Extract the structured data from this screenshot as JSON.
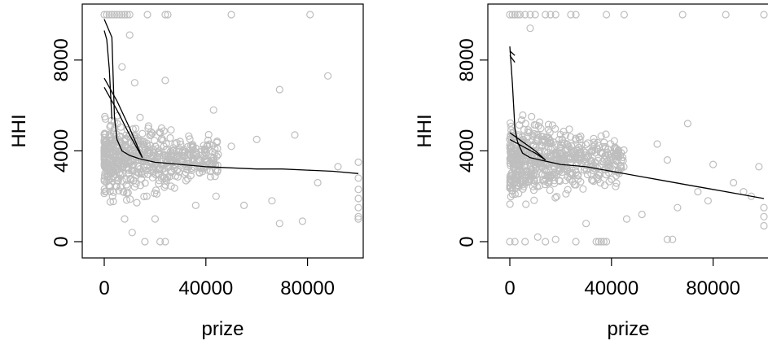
{
  "chart_data": [
    {
      "type": "scatter",
      "title": "",
      "xlabel": "prize",
      "ylabel": "HHI",
      "xlim": [
        0,
        100000
      ],
      "ylim": [
        0,
        10000
      ],
      "xticks": [
        0,
        40000,
        80000
      ],
      "xtick_labels": [
        "0",
        "40000",
        "80000"
      ],
      "yticks": [
        0,
        4000,
        8000
      ],
      "ytick_labels": [
        "0",
        "4000",
        "8000"
      ],
      "grid": false,
      "point_color": "#bebebe",
      "line_color": "#000000",
      "cap_points": [
        {
          "x": 0,
          "y": 10000
        },
        {
          "x": 1000,
          "y": 10000
        },
        {
          "x": 2000,
          "y": 10000
        },
        {
          "x": 3000,
          "y": 10000
        },
        {
          "x": 4000,
          "y": 10000
        },
        {
          "x": 5000,
          "y": 10000
        },
        {
          "x": 6000,
          "y": 10000
        },
        {
          "x": 7000,
          "y": 10000
        },
        {
          "x": 8000,
          "y": 10000
        },
        {
          "x": 9000,
          "y": 10000
        },
        {
          "x": 10000,
          "y": 10000
        },
        {
          "x": 17000,
          "y": 10000
        },
        {
          "x": 24000,
          "y": 10000
        },
        {
          "x": 25000,
          "y": 10000
        },
        {
          "x": 50000,
          "y": 10000
        },
        {
          "x": 81000,
          "y": 10000
        }
      ],
      "outlier_points": [
        {
          "x": 10000,
          "y": 9100
        },
        {
          "x": 7000,
          "y": 7700
        },
        {
          "x": 12000,
          "y": 7000
        },
        {
          "x": 24000,
          "y": 7100
        },
        {
          "x": 69000,
          "y": 6700
        },
        {
          "x": 88000,
          "y": 7300
        },
        {
          "x": 43000,
          "y": 5800
        },
        {
          "x": 50000,
          "y": 4200
        },
        {
          "x": 60000,
          "y": 4500
        },
        {
          "x": 75000,
          "y": 4700
        },
        {
          "x": 92000,
          "y": 3300
        },
        {
          "x": 100000,
          "y": 3500
        },
        {
          "x": 100000,
          "y": 2300
        },
        {
          "x": 100000,
          "y": 1900
        },
        {
          "x": 100000,
          "y": 1100
        },
        {
          "x": 100000,
          "y": 1000
        },
        {
          "x": 100000,
          "y": 1500
        },
        {
          "x": 100000,
          "y": 2800
        },
        {
          "x": 55000,
          "y": 1600
        },
        {
          "x": 69000,
          "y": 800
        },
        {
          "x": 78000,
          "y": 900
        },
        {
          "x": 8000,
          "y": 1000
        },
        {
          "x": 11000,
          "y": 400
        },
        {
          "x": 16000,
          "y": 0
        },
        {
          "x": 22000,
          "y": 0
        },
        {
          "x": 24000,
          "y": 0
        },
        {
          "x": 20000,
          "y": 1000
        },
        {
          "x": 36000,
          "y": 1600
        },
        {
          "x": 44000,
          "y": 2000
        },
        {
          "x": 66000,
          "y": 1800
        },
        {
          "x": 84000,
          "y": 2600
        }
      ],
      "cluster": {
        "count": 600,
        "x_range": [
          0,
          45000
        ],
        "y_center": 3700,
        "seed": 7
      },
      "fit_lines": [
        {
          "x": [
            0,
            3000,
            4000,
            5000,
            7000,
            10000,
            14000,
            20000,
            30000,
            40000,
            50000,
            60000,
            70000,
            80000,
            90000,
            100000
          ],
          "y": [
            9800,
            9000,
            5500,
            4500,
            4000,
            3800,
            3650,
            3500,
            3400,
            3300,
            3250,
            3200,
            3200,
            3150,
            3100,
            3000
          ]
        },
        {
          "x": [
            0,
            1000,
            2000,
            3000
          ],
          "y": [
            9300,
            8900,
            7600,
            5400
          ]
        },
        {
          "x": [
            0,
            5000,
            10000,
            15000
          ],
          "y": [
            7200,
            6200,
            5000,
            3700
          ]
        },
        {
          "x": [
            0,
            5000,
            10000,
            15000
          ],
          "y": [
            6800,
            5800,
            4700,
            3700
          ]
        }
      ]
    },
    {
      "type": "scatter",
      "title": "",
      "xlabel": "prize",
      "ylabel": "HHI",
      "xlim": [
        0,
        100000
      ],
      "ylim": [
        0,
        10000
      ],
      "xticks": [
        0,
        40000,
        80000
      ],
      "xtick_labels": [
        "0",
        "40000",
        "80000"
      ],
      "yticks": [
        0,
        4000,
        8000
      ],
      "ytick_labels": [
        "0",
        "4000",
        "8000"
      ],
      "grid": false,
      "point_color": "#bebebe",
      "line_color": "#000000",
      "cap_points": [
        {
          "x": 0,
          "y": 10000
        },
        {
          "x": 1000,
          "y": 10000
        },
        {
          "x": 2000,
          "y": 10000
        },
        {
          "x": 3000,
          "y": 10000
        },
        {
          "x": 4000,
          "y": 10000
        },
        {
          "x": 6000,
          "y": 10000
        },
        {
          "x": 8000,
          "y": 10000
        },
        {
          "x": 10000,
          "y": 10000
        },
        {
          "x": 14000,
          "y": 10000
        },
        {
          "x": 16000,
          "y": 10000
        },
        {
          "x": 18000,
          "y": 10000
        },
        {
          "x": 24000,
          "y": 10000
        },
        {
          "x": 26000,
          "y": 10000
        },
        {
          "x": 38000,
          "y": 10000
        },
        {
          "x": 45000,
          "y": 10000
        },
        {
          "x": 68000,
          "y": 10000
        },
        {
          "x": 85000,
          "y": 10000
        },
        {
          "x": 100000,
          "y": 10000
        }
      ],
      "outlier_points": [
        {
          "x": 8000,
          "y": 9400
        },
        {
          "x": 70000,
          "y": 5200
        },
        {
          "x": 58000,
          "y": 4300
        },
        {
          "x": 62000,
          "y": 3600
        },
        {
          "x": 80000,
          "y": 3400
        },
        {
          "x": 88000,
          "y": 2600
        },
        {
          "x": 92000,
          "y": 2200
        },
        {
          "x": 95000,
          "y": 2000
        },
        {
          "x": 98000,
          "y": 3300
        },
        {
          "x": 100000,
          "y": 1500
        },
        {
          "x": 100000,
          "y": 1100
        },
        {
          "x": 100000,
          "y": 700
        },
        {
          "x": 74000,
          "y": 2200
        },
        {
          "x": 78000,
          "y": 1800
        },
        {
          "x": 66000,
          "y": 1500
        },
        {
          "x": 62000,
          "y": 100
        },
        {
          "x": 64000,
          "y": 100
        },
        {
          "x": 0,
          "y": 0
        },
        {
          "x": 2000,
          "y": 0
        },
        {
          "x": 6000,
          "y": 0
        },
        {
          "x": 11000,
          "y": 200
        },
        {
          "x": 14000,
          "y": 0
        },
        {
          "x": 18000,
          "y": 100
        },
        {
          "x": 26000,
          "y": 0
        },
        {
          "x": 34000,
          "y": 0
        },
        {
          "x": 35000,
          "y": 0
        },
        {
          "x": 36000,
          "y": 0
        },
        {
          "x": 37000,
          "y": 0
        },
        {
          "x": 38000,
          "y": 0
        },
        {
          "x": 30000,
          "y": 800
        },
        {
          "x": 46000,
          "y": 1000
        },
        {
          "x": 52000,
          "y": 1200
        }
      ],
      "cluster": {
        "count": 600,
        "x_range": [
          0,
          45000
        ],
        "y_center": 3600,
        "seed": 13
      },
      "fit_lines": [
        {
          "x": [
            0,
            1000,
            2000,
            3000,
            5000,
            8000,
            12000,
            20000,
            30000,
            40000,
            50000,
            60000,
            70000,
            80000,
            90000,
            100000
          ],
          "y": [
            8600,
            7000,
            5000,
            4400,
            3900,
            3700,
            3600,
            3400,
            3300,
            3100,
            2900,
            2700,
            2500,
            2300,
            2100,
            1900
          ]
        },
        {
          "x": [
            0,
            1000,
            2000
          ],
          "y": [
            8400,
            8300,
            8200
          ]
        },
        {
          "x": [
            0,
            1000,
            2000
          ],
          "y": [
            8200,
            8050,
            7900
          ]
        },
        {
          "x": [
            0,
            5000,
            10000,
            14000
          ],
          "y": [
            4800,
            4400,
            4000,
            3600
          ]
        },
        {
          "x": [
            0,
            5000,
            10000,
            14000
          ],
          "y": [
            4500,
            4200,
            3900,
            3600
          ]
        }
      ]
    }
  ]
}
